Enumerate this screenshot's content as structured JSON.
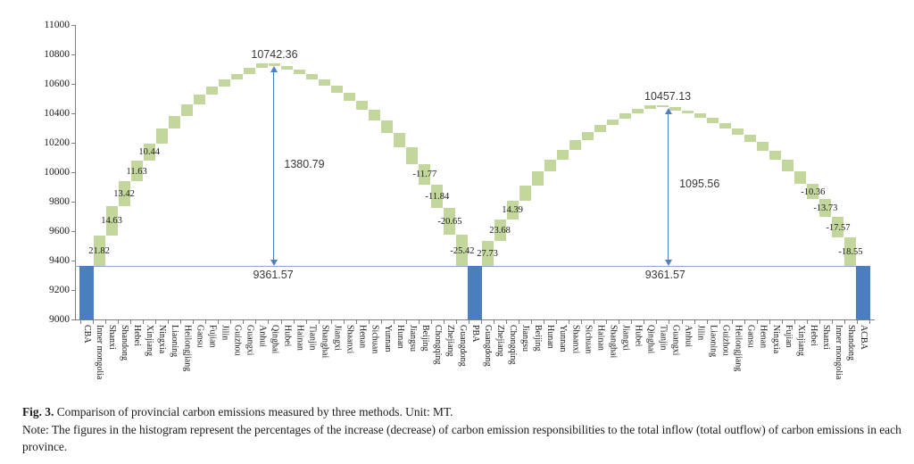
{
  "figure": {
    "caption_label": "Fig. 3.",
    "caption_text": " Comparison of provincial carbon emissions measured by three methods. Unit: MT.",
    "note_text": "Note: The figures in the histogram represent the percentages of the increase (decrease) of carbon emission responsibilities to the total inflow (total outflow) of carbon emissions in each province."
  },
  "chart_data": {
    "type": "bar",
    "subtype": "waterfall",
    "title": "",
    "xlabel": "",
    "ylabel": "",
    "unit": "MT",
    "ylim": [
      9000,
      11000
    ],
    "yticks": [
      9000,
      9200,
      9400,
      9600,
      9800,
      10000,
      10200,
      10400,
      10600,
      10800,
      11000
    ],
    "grid": false,
    "legend": false,
    "baseline_value": 9361.57,
    "peak1_value": 10742.36,
    "peak2_value": 10457.13,
    "span1_value": 1380.79,
    "span2_value": 1095.56,
    "colors": {
      "delta_bar": "#c3d69b",
      "total_bar": "#4b7ebe",
      "baseline_line": "#85abd3",
      "arrow": "#4f81bd",
      "axis": "#7f7f7f",
      "text": "#1a1a1a"
    },
    "columns": [
      {
        "label": "CBA",
        "kind": "total",
        "value": 9361.57
      },
      {
        "label": "Inner mongolia",
        "kind": "delta",
        "delta": 210.0,
        "pct": "21.82"
      },
      {
        "label": "Shanxi",
        "kind": "delta",
        "delta": 200.0,
        "pct": "14.63"
      },
      {
        "label": "Shandong",
        "kind": "delta",
        "delta": 165.0,
        "pct": "13.42"
      },
      {
        "label": "Hebei",
        "kind": "delta",
        "delta": 140.0,
        "pct": "11.63"
      },
      {
        "label": "Xinjiang",
        "kind": "delta",
        "delta": 119.79,
        "pct": "10.44"
      },
      {
        "label": "Ningxia",
        "kind": "delta",
        "delta": 100.0
      },
      {
        "label": "Liaoning",
        "kind": "delta",
        "delta": 88.0
      },
      {
        "label": "Heilongjiang",
        "kind": "delta",
        "delta": 75.0
      },
      {
        "label": "Gansu",
        "kind": "delta",
        "delta": 65.0
      },
      {
        "label": "Fujian",
        "kind": "delta",
        "delta": 55.0
      },
      {
        "label": "Jilin",
        "kind": "delta",
        "delta": 48.0
      },
      {
        "label": "Guizhou",
        "kind": "delta",
        "delta": 42.0
      },
      {
        "label": "Guangxi",
        "kind": "delta",
        "delta": 38.0
      },
      {
        "label": "Anhui",
        "kind": "delta",
        "delta": 35.0
      },
      {
        "label": "Qinghai",
        "kind": "delta",
        "delta": -20.0
      },
      {
        "label": "Hubei",
        "kind": "delta",
        "delta": -25.0
      },
      {
        "label": "Hainan",
        "kind": "delta",
        "delta": -30.0
      },
      {
        "label": "Tianjin",
        "kind": "delta",
        "delta": -36.0
      },
      {
        "label": "Shanghai",
        "kind": "delta",
        "delta": -42.0
      },
      {
        "label": "Jiangxi",
        "kind": "delta",
        "delta": -48.0
      },
      {
        "label": "Shaanxi",
        "kind": "delta",
        "delta": -55.0
      },
      {
        "label": "Henan",
        "kind": "delta",
        "delta": -62.0
      },
      {
        "label": "Sichuan",
        "kind": "delta",
        "delta": -72.0
      },
      {
        "label": "Yunnan",
        "kind": "delta",
        "delta": -85.0
      },
      {
        "label": "Hunan",
        "kind": "delta",
        "delta": -100.0
      },
      {
        "label": "Jiangsu",
        "kind": "delta",
        "delta": -115.0
      },
      {
        "label": "Beijing",
        "kind": "delta",
        "delta": -135.0,
        "pct": "-11.77"
      },
      {
        "label": "Chongqing",
        "kind": "delta",
        "delta": -158.0,
        "pct": "-11.84"
      },
      {
        "label": "Zhejiang",
        "kind": "delta",
        "delta": -183.0,
        "pct": "-20.65"
      },
      {
        "label": "Guangdong",
        "kind": "delta",
        "delta": -214.79,
        "pct": "-25.42"
      },
      {
        "label": "PBA",
        "kind": "total",
        "value": 9361.57
      },
      {
        "label": "Guangdong",
        "kind": "delta",
        "delta": 170.0,
        "pct": "27.73"
      },
      {
        "label": "Zhejiang",
        "kind": "delta",
        "delta": 150.0,
        "pct": "23.68"
      },
      {
        "label": "Chongqing",
        "kind": "delta",
        "delta": 125.0,
        "pct": "14.39"
      },
      {
        "label": "Jiangsu",
        "kind": "delta",
        "delta": 105.0
      },
      {
        "label": "Beijing",
        "kind": "delta",
        "delta": 92.0
      },
      {
        "label": "Hunan",
        "kind": "delta",
        "delta": 80.0
      },
      {
        "label": "Yunnan",
        "kind": "delta",
        "delta": 70.0
      },
      {
        "label": "Shaanxi",
        "kind": "delta",
        "delta": 62.0
      },
      {
        "label": "Sichuan",
        "kind": "delta",
        "delta": 55.0
      },
      {
        "label": "Hainan",
        "kind": "delta",
        "delta": 48.0
      },
      {
        "label": "Shanghai",
        "kind": "delta",
        "delta": 42.0
      },
      {
        "label": "Jiangxi",
        "kind": "delta",
        "delta": 37.0
      },
      {
        "label": "Hubei",
        "kind": "delta",
        "delta": 32.0
      },
      {
        "label": "Qinghai",
        "kind": "delta",
        "delta": 27.56
      },
      {
        "label": "Tianjin",
        "kind": "delta",
        "delta": -16.0
      },
      {
        "label": "Guangxi",
        "kind": "delta",
        "delta": -20.0
      },
      {
        "label": "Anhui",
        "kind": "delta",
        "delta": -24.0
      },
      {
        "label": "Jilin",
        "kind": "delta",
        "delta": -28.0
      },
      {
        "label": "Liaoning",
        "kind": "delta",
        "delta": -33.0
      },
      {
        "label": "Guizhou",
        "kind": "delta",
        "delta": -38.0
      },
      {
        "label": "Heilongjiang",
        "kind": "delta",
        "delta": -44.0
      },
      {
        "label": "Gansu",
        "kind": "delta",
        "delta": -50.0
      },
      {
        "label": "Henan",
        "kind": "delta",
        "delta": -57.0
      },
      {
        "label": "Ningxia",
        "kind": "delta",
        "delta": -65.0
      },
      {
        "label": "Fujian",
        "kind": "delta",
        "delta": -75.0
      },
      {
        "label": "Xinjiang",
        "kind": "delta",
        "delta": -87.0
      },
      {
        "label": "Hebei",
        "kind": "delta",
        "delta": -102.0,
        "pct": "-10.36"
      },
      {
        "label": "Shanxi",
        "kind": "delta",
        "delta": -120.0,
        "pct": "-13.73"
      },
      {
        "label": "Inner mongolia",
        "kind": "delta",
        "delta": -142.0,
        "pct": "-17.57"
      },
      {
        "label": "Shandong",
        "kind": "delta",
        "delta": -194.56,
        "pct": "-18.55"
      },
      {
        "label": "ACBA",
        "kind": "total",
        "value": 9361.57
      }
    ],
    "annotations": [
      {
        "id": "peak1-label",
        "text": "10742.36",
        "cx": 15.0,
        "y_value": 10795,
        "align": "center"
      },
      {
        "id": "span1-label",
        "text": "1380.79",
        "cx": 15.35,
        "y_value": 10050,
        "align": "left"
      },
      {
        "id": "baseline1-label",
        "text": "9361.57",
        "cx": 14.9,
        "y_value": 9295,
        "align": "center"
      },
      {
        "id": "peak2-label",
        "text": "10457.13",
        "cx": 46.4,
        "y_value": 10510,
        "align": "center"
      },
      {
        "id": "span2-label",
        "text": "1095.56",
        "cx": 46.9,
        "y_value": 9915,
        "align": "left"
      },
      {
        "id": "baseline2-label",
        "text": "9361.57",
        "cx": 46.2,
        "y_value": 9295,
        "align": "center"
      }
    ],
    "arrows": [
      {
        "id": "arrow1",
        "cx": 14.9,
        "from_value": 9361.57,
        "to_value": 10722
      },
      {
        "id": "arrow2",
        "cx": 46.4,
        "from_value": 9361.57,
        "to_value": 10437
      }
    ]
  }
}
